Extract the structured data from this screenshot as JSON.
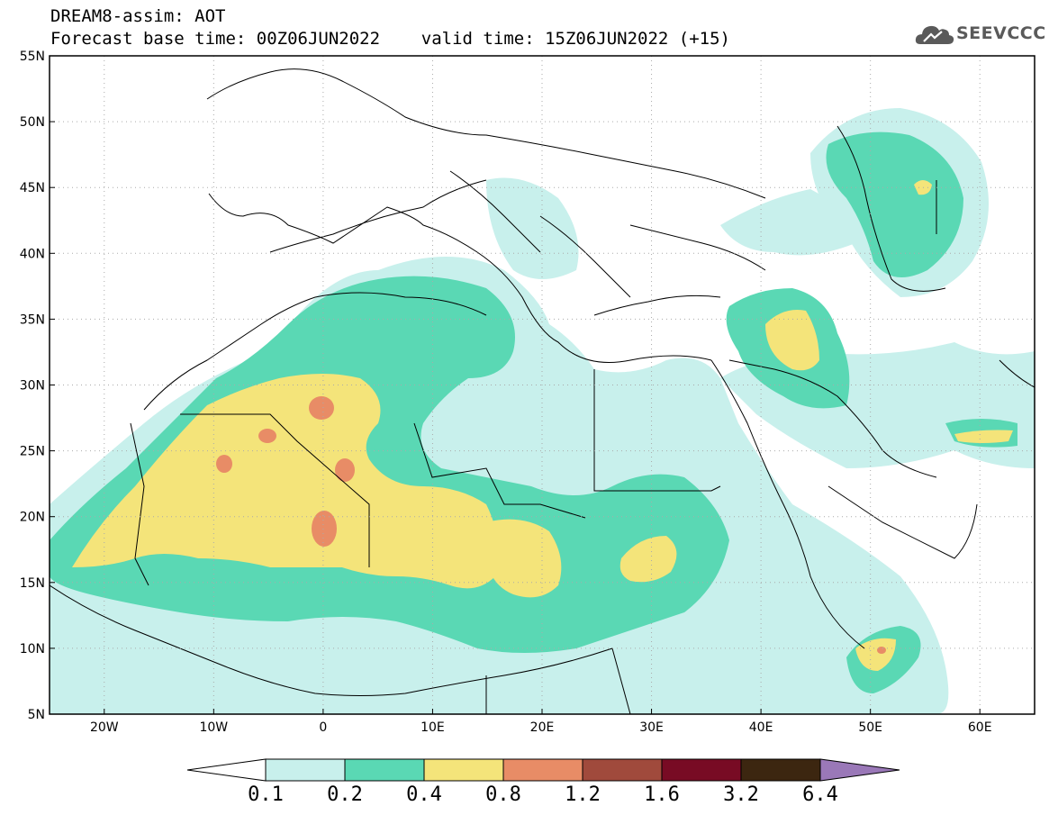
{
  "title": {
    "line1": "DREAM8-assim: AOT",
    "line2": "Forecast base time: 00Z06JUN2022    valid time: 15Z06JUN2022 (+15)"
  },
  "logo": {
    "text": "SEEVCCC",
    "icon": "cloud-icon"
  },
  "map": {
    "lon_range": [
      -25,
      65
    ],
    "lat_range": [
      5,
      55
    ],
    "lon_ticks": [
      "20W",
      "10W",
      "0",
      "10E",
      "20E",
      "30E",
      "40E",
      "50E",
      "60E"
    ],
    "lat_ticks": [
      "55N",
      "50N",
      "45N",
      "40N",
      "35N",
      "30N",
      "25N",
      "20N",
      "15N",
      "10N",
      "5N"
    ]
  },
  "colorbar": {
    "labels": [
      "0.1",
      "0.2",
      "0.4",
      "0.8",
      "1.2",
      "1.6",
      "3.2",
      "6.4"
    ],
    "colors": [
      "#c8f0ec",
      "#5ad8b4",
      "#f4e47a",
      "#e88c66",
      "#a04a3c",
      "#780b24",
      "#3c2610",
      "#9a78b8"
    ],
    "low_color": "#ffffff"
  },
  "colors": {
    "lt_0_1": "#ffffff",
    "c_0_1": "#c8f0ec",
    "c_0_2": "#5ad8b4",
    "c_0_4": "#f4e47a",
    "c_0_8": "#e88c66"
  }
}
